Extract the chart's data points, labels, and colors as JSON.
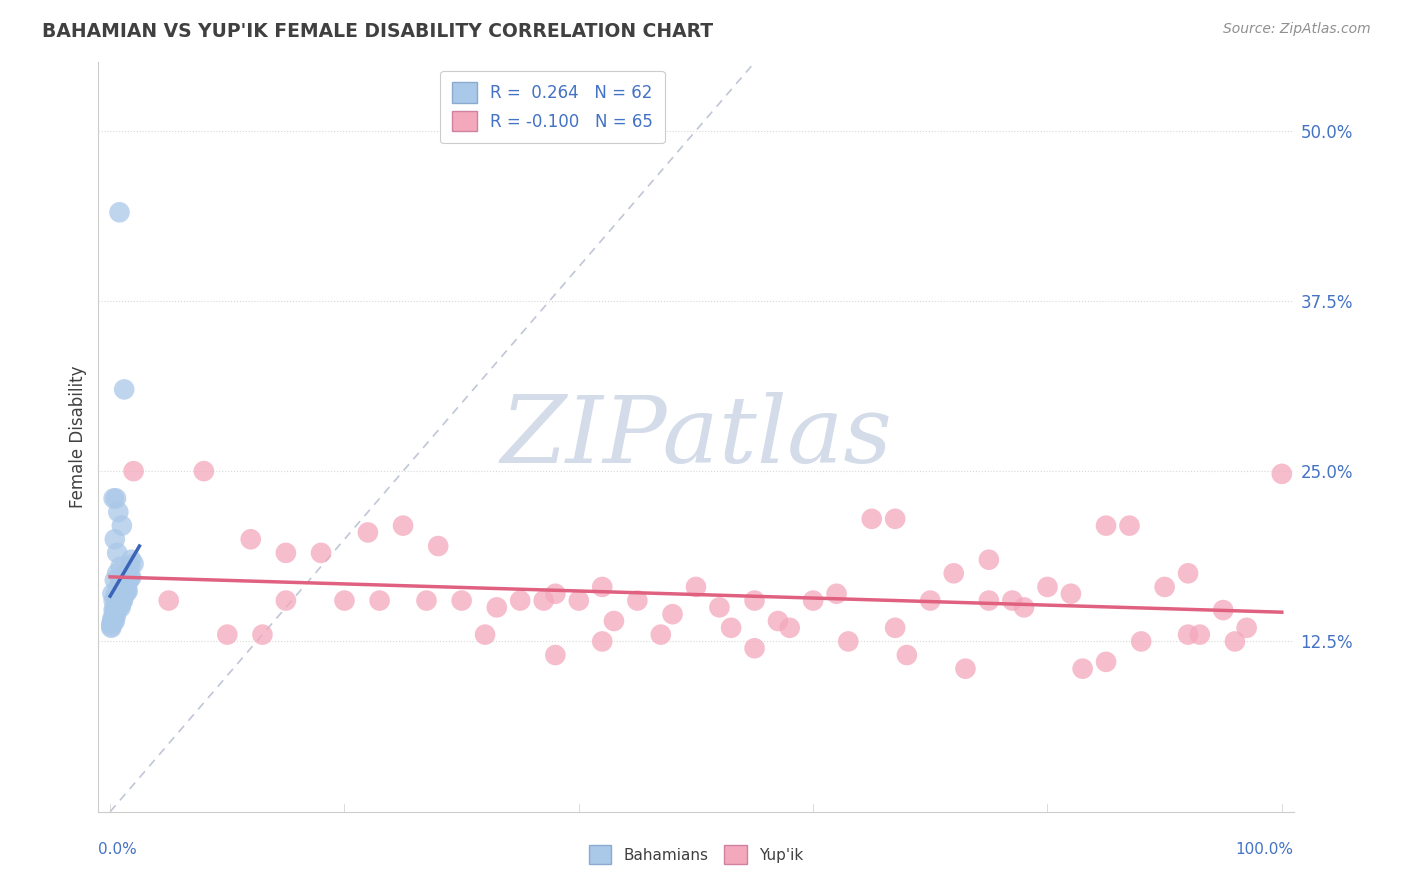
{
  "title": "BAHAMIAN VS YUP'IK FEMALE DISABILITY CORRELATION CHART",
  "source": "Source: ZipAtlas.com",
  "ylabel": "Female Disability",
  "ytick_labels": [
    "12.5%",
    "25.0%",
    "37.5%",
    "50.0%"
  ],
  "ytick_values": [
    0.125,
    0.25,
    0.375,
    0.5
  ],
  "xlim": [
    -0.01,
    1.01
  ],
  "ylim": [
    0.0,
    0.55
  ],
  "xmin_label": "0.0%",
  "xmax_label": "100.0%",
  "R_bahamian": 0.264,
  "N_bahamian": 62,
  "R_yupik": -0.1,
  "N_yupik": 65,
  "bahamian_color": "#aac8e8",
  "yupik_color": "#f4a8bc",
  "bahamian_line_color": "#3a64b8",
  "yupik_line_color": "#e06080",
  "legend_text_color": "#4472c4",
  "axis_text_color": "#4472c4",
  "title_color": "#404040",
  "source_color": "#909090",
  "background_color": "#ffffff",
  "grid_color": "#d8d8d8",
  "diag_color": "#b0b8cc",
  "watermark_color": "#d4dcea",
  "bahamian_x": [
    0.008,
    0.012,
    0.003,
    0.005,
    0.007,
    0.01,
    0.004,
    0.006,
    0.009,
    0.006,
    0.004,
    0.002,
    0.007,
    0.005,
    0.009,
    0.003,
    0.004,
    0.006,
    0.008,
    0.01,
    0.012,
    0.014,
    0.018,
    0.003,
    0.002,
    0.005,
    0.007,
    0.009,
    0.011,
    0.013,
    0.015,
    0.017,
    0.001,
    0.003,
    0.004,
    0.007,
    0.01,
    0.013,
    0.016,
    0.005,
    0.008,
    0.012,
    0.014,
    0.002,
    0.005,
    0.007,
    0.01,
    0.015,
    0.018,
    0.001,
    0.003,
    0.006,
    0.009,
    0.012,
    0.016,
    0.001,
    0.004,
    0.009,
    0.011,
    0.014,
    0.017,
    0.02
  ],
  "bahamian_y": [
    0.44,
    0.31,
    0.23,
    0.23,
    0.22,
    0.21,
    0.2,
    0.19,
    0.18,
    0.175,
    0.17,
    0.16,
    0.165,
    0.16,
    0.17,
    0.155,
    0.15,
    0.155,
    0.16,
    0.165,
    0.17,
    0.175,
    0.185,
    0.148,
    0.142,
    0.152,
    0.155,
    0.16,
    0.165,
    0.17,
    0.175,
    0.18,
    0.138,
    0.142,
    0.148,
    0.152,
    0.155,
    0.16,
    0.17,
    0.148,
    0.152,
    0.16,
    0.165,
    0.14,
    0.144,
    0.15,
    0.155,
    0.162,
    0.172,
    0.135,
    0.14,
    0.148,
    0.152,
    0.16,
    0.17,
    0.136,
    0.14,
    0.15,
    0.155,
    0.162,
    0.172,
    0.182
  ],
  "yupik_x": [
    0.02,
    0.08,
    0.12,
    0.15,
    0.18,
    0.22,
    0.25,
    0.28,
    0.3,
    0.33,
    0.35,
    0.38,
    0.4,
    0.42,
    0.45,
    0.48,
    0.5,
    0.52,
    0.55,
    0.57,
    0.6,
    0.62,
    0.65,
    0.67,
    0.7,
    0.72,
    0.75,
    0.77,
    0.8,
    0.82,
    0.85,
    0.87,
    0.9,
    0.92,
    0.95,
    0.97,
    1.0,
    0.05,
    0.1,
    0.2,
    0.32,
    0.43,
    0.53,
    0.63,
    0.73,
    0.83,
    0.93,
    0.15,
    0.37,
    0.58,
    0.78,
    0.96,
    0.23,
    0.47,
    0.68,
    0.88,
    0.13,
    0.42,
    0.67,
    0.85,
    0.27,
    0.55,
    0.75,
    0.92,
    0.38
  ],
  "yupik_y": [
    0.25,
    0.25,
    0.2,
    0.19,
    0.19,
    0.205,
    0.21,
    0.195,
    0.155,
    0.15,
    0.155,
    0.16,
    0.155,
    0.165,
    0.155,
    0.145,
    0.165,
    0.15,
    0.155,
    0.14,
    0.155,
    0.16,
    0.215,
    0.215,
    0.155,
    0.175,
    0.185,
    0.155,
    0.165,
    0.16,
    0.21,
    0.21,
    0.165,
    0.175,
    0.148,
    0.135,
    0.248,
    0.155,
    0.13,
    0.155,
    0.13,
    0.14,
    0.135,
    0.125,
    0.105,
    0.105,
    0.13,
    0.155,
    0.155,
    0.135,
    0.15,
    0.125,
    0.155,
    0.13,
    0.115,
    0.125,
    0.13,
    0.125,
    0.135,
    0.11,
    0.155,
    0.12,
    0.155,
    0.13,
    0.115
  ]
}
